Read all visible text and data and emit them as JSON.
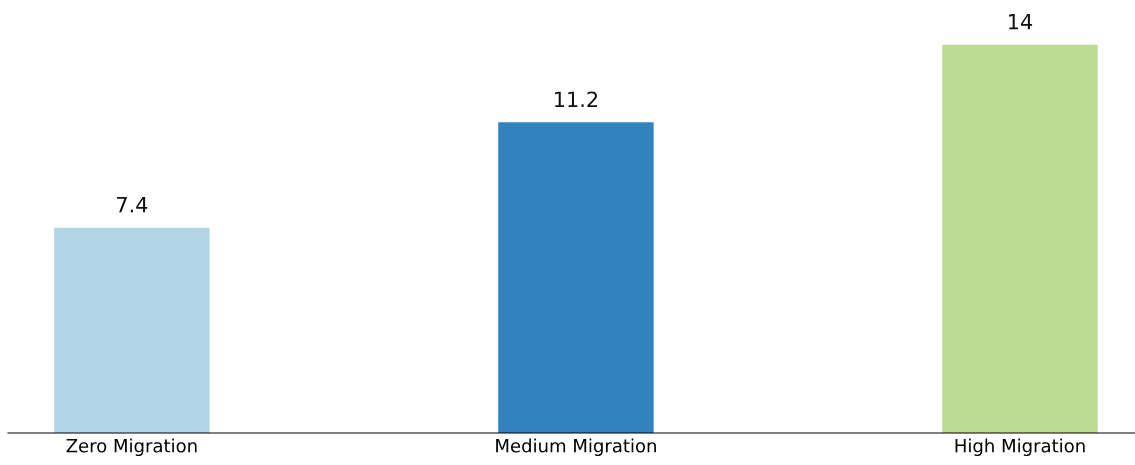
{
  "chart_data": {
    "type": "bar",
    "categories": [
      "Zero Migration",
      "Medium Migration",
      "High Migration"
    ],
    "values": [
      7.4,
      11.2,
      14
    ],
    "colors": [
      "#b1d5e6",
      "#3182bd",
      "#bcdc93"
    ],
    "data_labels": true,
    "grid": false,
    "legend": false,
    "tick_labels": "x"
  }
}
